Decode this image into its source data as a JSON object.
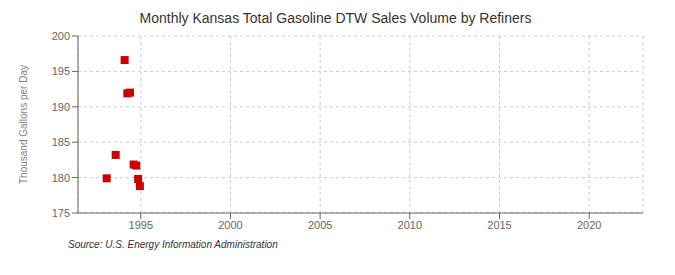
{
  "chart_data": {
    "type": "scatter",
    "title": "Monthly Kansas Total Gasoline DTW Sales Volume by Refiners",
    "y_label": "Thousand Gallons per Day",
    "source": "Source: U.S. Energy Information Administration",
    "x": [
      1993.1,
      1993.6,
      1994.1,
      1994.25,
      1994.4,
      1994.6,
      1994.75,
      1994.85,
      1994.95
    ],
    "values": [
      179.9,
      183.2,
      196.6,
      191.9,
      192.0,
      181.85,
      181.7,
      179.8,
      178.8
    ],
    "color": "#cc0000",
    "marker": "square",
    "xlim": [
      1991.5,
      2023
    ],
    "xticks": [
      1995,
      2000,
      2005,
      2010,
      2015,
      2020
    ],
    "ylim": [
      175,
      200
    ],
    "yticks": [
      175,
      180,
      185,
      190,
      195,
      200
    ],
    "grid": true
  }
}
